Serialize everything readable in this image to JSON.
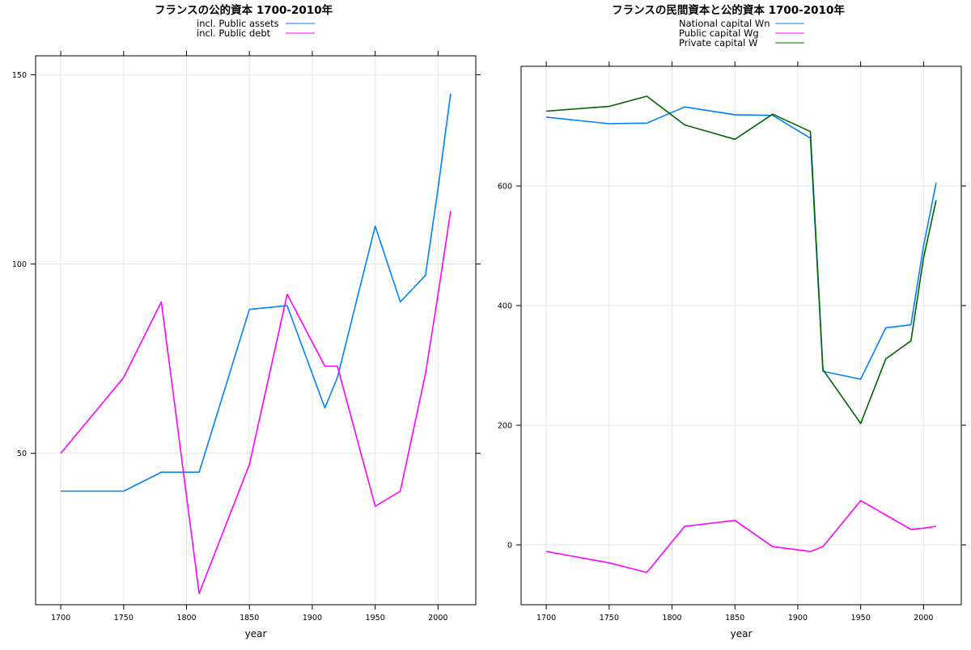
{
  "chart_data": [
    {
      "type": "line",
      "title": "フランスの公的資本 1700-2010年",
      "xlabel": "year",
      "ylabel": "",
      "xlim": [
        1680,
        2030
      ],
      "ylim": [
        10,
        155
      ],
      "xticks": [
        1700,
        1750,
        1800,
        1850,
        1900,
        1950,
        2000
      ],
      "yticks": [
        50,
        100,
        150
      ],
      "grid": true,
      "legend_position": "top",
      "series": [
        {
          "name": "incl. Public assets",
          "color": "#0080ff",
          "points": [
            [
              1700,
              40
            ],
            [
              1750,
              40
            ],
            [
              1780,
              45
            ],
            [
              1810,
              45
            ],
            [
              1850,
              88
            ],
            [
              1880,
              89
            ],
            [
              1910,
              62
            ],
            [
              1920,
              70
            ],
            [
              1950,
              110
            ],
            [
              1970,
              90
            ],
            [
              1990,
              97
            ],
            [
              2000,
              120
            ],
            [
              2010,
              145
            ]
          ]
        },
        {
          "name": "incl. Public debt",
          "color": "#ff00ff",
          "points": [
            [
              1700,
              50
            ],
            [
              1750,
              70
            ],
            [
              1780,
              90
            ],
            [
              1810,
              13
            ],
            [
              1850,
              47
            ],
            [
              1880,
              92
            ],
            [
              1910,
              73
            ],
            [
              1920,
              73
            ],
            [
              1950,
              36
            ],
            [
              1970,
              40
            ],
            [
              1990,
              71
            ],
            [
              2000,
              92
            ],
            [
              2010,
              114
            ]
          ]
        }
      ]
    },
    {
      "type": "line",
      "title": "フランスの民間資本と公的資本 1700-2010年",
      "xlabel": "year",
      "ylabel": "",
      "xlim": [
        1680,
        2030
      ],
      "ylim": [
        -100,
        800
      ],
      "xticks": [
        1700,
        1750,
        1800,
        1850,
        1900,
        1950,
        2000
      ],
      "yticks": [
        0,
        200,
        400,
        600
      ],
      "grid": true,
      "legend_position": "top",
      "series": [
        {
          "name": "National capital Wn",
          "color": "#0080ff",
          "points": [
            [
              1700,
              715
            ],
            [
              1750,
              704
            ],
            [
              1780,
              705
            ],
            [
              1810,
              732
            ],
            [
              1850,
              719
            ],
            [
              1880,
              718
            ],
            [
              1910,
              680
            ],
            [
              1920,
              290
            ],
            [
              1950,
              277
            ],
            [
              1970,
              363
            ],
            [
              1990,
              368
            ],
            [
              2000,
              500
            ],
            [
              2010,
              605
            ]
          ]
        },
        {
          "name": "Public capital Wg",
          "color": "#ff00ff",
          "points": [
            [
              1700,
              -11
            ],
            [
              1750,
              -30
            ],
            [
              1780,
              -46
            ],
            [
              1810,
              31
            ],
            [
              1850,
              41
            ],
            [
              1880,
              -3
            ],
            [
              1910,
              -11
            ],
            [
              1920,
              -3
            ],
            [
              1950,
              74
            ],
            [
              1970,
              50
            ],
            [
              1990,
              26
            ],
            [
              2000,
              28
            ],
            [
              2010,
              31
            ]
          ]
        },
        {
          "name": "Private capital W",
          "color": "#006400",
          "points": [
            [
              1700,
              725
            ],
            [
              1750,
              733
            ],
            [
              1780,
              750
            ],
            [
              1810,
              702
            ],
            [
              1850,
              678
            ],
            [
              1880,
              720
            ],
            [
              1910,
              691
            ],
            [
              1920,
              293
            ],
            [
              1950,
              203
            ],
            [
              1970,
              311
            ],
            [
              1990,
              341
            ],
            [
              2000,
              480
            ],
            [
              2010,
              576
            ]
          ]
        }
      ]
    }
  ]
}
